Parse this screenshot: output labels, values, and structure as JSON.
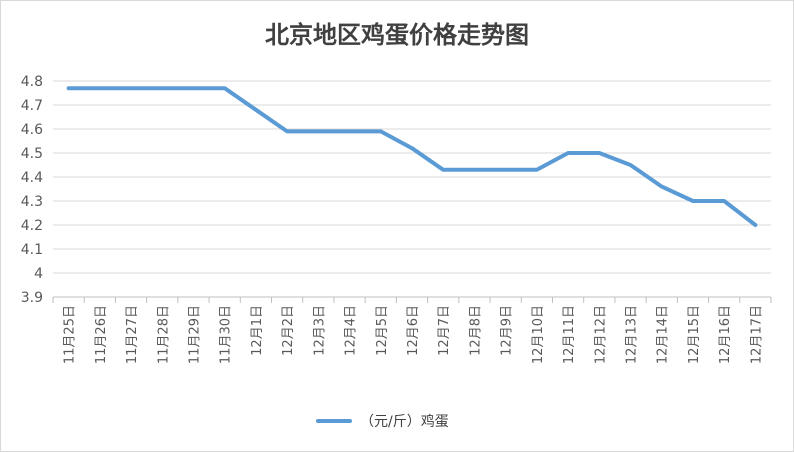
{
  "chart_data": {
    "type": "line",
    "title": "北京地区鸡蛋价格走势图",
    "xlabel": "",
    "ylabel": "",
    "categories": [
      "11月25日",
      "11月26日",
      "11月27日",
      "11月28日",
      "11月29日",
      "11月30日",
      "12月1日",
      "12月2日",
      "12月3日",
      "12月4日",
      "12月5日",
      "12月6日",
      "12月7日",
      "12月8日",
      "12月9日",
      "12月10日",
      "12月11日",
      "12月12日",
      "12月13日",
      "12月14日",
      "12月15日",
      "12月16日",
      "12月17日"
    ],
    "y_ticks": [
      "3.9",
      "4",
      "4.1",
      "4.2",
      "4.3",
      "4.4",
      "4.5",
      "4.6",
      "4.7",
      "4.8"
    ],
    "ylim": [
      3.9,
      4.8
    ],
    "grid": true,
    "legend_position": "bottom",
    "series": [
      {
        "name": "（元/斤）鸡蛋",
        "color": "#5b9bd5",
        "values": [
          4.77,
          4.77,
          4.77,
          4.77,
          4.77,
          4.77,
          4.68,
          4.59,
          4.59,
          4.59,
          4.59,
          4.52,
          4.43,
          4.43,
          4.43,
          4.43,
          4.5,
          4.5,
          4.45,
          4.36,
          4.3,
          4.3,
          4.2
        ]
      }
    ]
  }
}
